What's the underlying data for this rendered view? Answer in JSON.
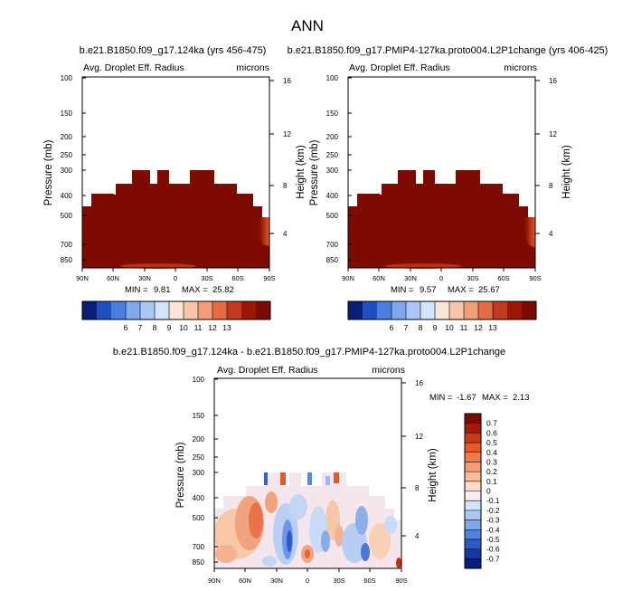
{
  "page": {
    "title": "ANN",
    "stats_min_label": "MIN =",
    "stats_max_label": "MAX ="
  },
  "chart_data": [
    {
      "type": "heatmap",
      "title": "b.e21.B1850.f09_g17.124ka (yrs 456-475)",
      "variable_label": "Avg. Droplet Eff. Radius",
      "units": "microns",
      "xlabel": "",
      "ylabel": "Pressure (mb)",
      "y2label": "Height (km)",
      "x_ticks": [
        "90N",
        "60N",
        "30N",
        "0",
        "30S",
        "60S",
        "90S"
      ],
      "y_ticks": [
        100,
        150,
        200,
        250,
        300,
        400,
        500,
        700,
        850
      ],
      "y2_ticks": [
        16,
        12,
        8,
        4
      ],
      "ylim": [
        100,
        1000
      ],
      "min": 9.81,
      "max": 25.82,
      "colorbar": {
        "levels": [
          6,
          7,
          8,
          9,
          10,
          11,
          12,
          13
        ],
        "colors": [
          "#0a1e78",
          "#1f4fc0",
          "#4a7fe0",
          "#7fa8ee",
          "#aac8f5",
          "#d2e3fa",
          "#fbe5d6",
          "#f9c5a8",
          "#f29d77",
          "#e36c45",
          "#c43a20",
          "#9b1606",
          "#7a0a02"
        ]
      },
      "fill_color": "#7d0b01"
    },
    {
      "type": "heatmap",
      "title": "b.e21.B1850.f09_g17.PMIP4-127ka.proto004.L2P1change (yrs 406-425)",
      "variable_label": "Avg. Droplet Eff. Radius",
      "units": "microns",
      "xlabel": "",
      "ylabel": "Pressure (mb)",
      "y2label": "Height (km)",
      "x_ticks": [
        "90N",
        "60N",
        "30N",
        "0",
        "30S",
        "60S",
        "90S"
      ],
      "y_ticks": [
        100,
        150,
        200,
        250,
        300,
        400,
        500,
        700,
        850
      ],
      "y2_ticks": [
        16,
        12,
        8,
        4
      ],
      "ylim": [
        100,
        1000
      ],
      "min": 9.57,
      "max": 25.67,
      "colorbar": {
        "levels": [
          6,
          7,
          8,
          9,
          10,
          11,
          12,
          13
        ],
        "colors": [
          "#0a1e78",
          "#1f4fc0",
          "#4a7fe0",
          "#7fa8ee",
          "#aac8f5",
          "#d2e3fa",
          "#fbe5d6",
          "#f9c5a8",
          "#f29d77",
          "#e36c45",
          "#c43a20",
          "#9b1606",
          "#7a0a02"
        ]
      },
      "fill_color": "#7d0b01"
    },
    {
      "type": "heatmap",
      "title": "b.e21.B1850.f09_g17.124ka - b.e21.B1850.f09_g17.PMIP4-127ka.proto004.L2P1change",
      "variable_label": "Avg. Droplet Eff. Radius",
      "units": "microns",
      "xlabel": "",
      "ylabel": "Pressure (mb)",
      "y2label": "Height (km)",
      "x_ticks": [
        "90N",
        "60N",
        "30N",
        "0",
        "30S",
        "60S",
        "90S"
      ],
      "y_ticks": [
        100,
        150,
        200,
        250,
        300,
        400,
        500,
        700,
        850
      ],
      "y2_ticks": [
        16,
        12,
        8,
        4
      ],
      "ylim": [
        100,
        1000
      ],
      "min": -1.67,
      "max": 2.13,
      "colorbar": {
        "levels": [
          0.7,
          0.6,
          0.5,
          0.4,
          0.3,
          0.2,
          0.1,
          0,
          -0.1,
          -0.2,
          -0.3,
          -0.4,
          -0.5,
          -0.6,
          -0.7
        ],
        "colors": [
          "#7a0a02",
          "#a51a08",
          "#c93a16",
          "#e35a2a",
          "#f07a48",
          "#f59d72",
          "#f8bf9e",
          "#fbdcc6",
          "#f6ecf2",
          "#d4e3f8",
          "#aac6f2",
          "#7ea6ea",
          "#5382dc",
          "#2c5bc8",
          "#1438a0",
          "#0a1e78"
        ]
      }
    }
  ]
}
